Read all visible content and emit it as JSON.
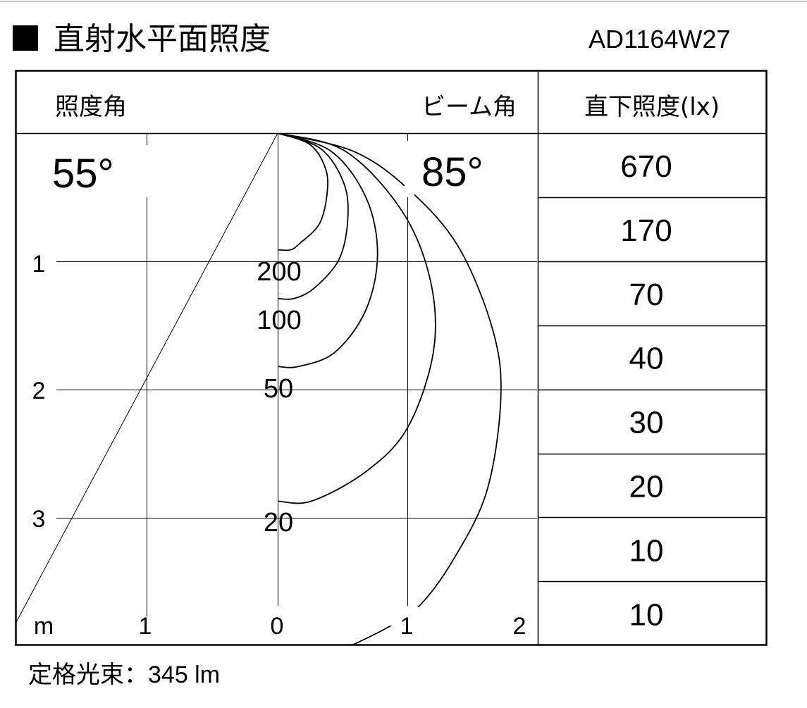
{
  "header": {
    "title": "直射水平面照度",
    "model": "AD1164W27"
  },
  "table": {
    "col_illum_angle": "照度角",
    "col_beam_angle": "ビーム角",
    "col_direct_illum": "直下照度(lx)",
    "illum_angle_value": "55°",
    "beam_angle_value": "85°",
    "direct_illuminance": [
      "670",
      "170",
      "70",
      "40",
      "30",
      "20",
      "10",
      "10"
    ]
  },
  "diagram": {
    "unit": "m",
    "x_ticks": [
      "1",
      "0",
      "1",
      "2"
    ],
    "y_ticks": [
      "1",
      "2",
      "3"
    ],
    "contours": [
      {
        "label": "200",
        "points": [
          [
            0,
            0
          ],
          [
            0.25,
            0.09
          ],
          [
            0.37,
            0.28
          ],
          [
            0.38,
            0.48
          ],
          [
            0.32,
            0.71
          ],
          [
            0.17,
            0.86
          ],
          [
            0.1,
            0.91
          ],
          [
            0,
            0.91
          ]
        ]
      },
      {
        "label": "100",
        "points": [
          [
            0,
            0
          ],
          [
            0.33,
            0.12
          ],
          [
            0.51,
            0.39
          ],
          [
            0.54,
            0.68
          ],
          [
            0.47,
            0.99
          ],
          [
            0.28,
            1.21
          ],
          [
            0.125,
            1.29
          ],
          [
            0,
            1.29
          ]
        ]
      },
      {
        "label": "50",
        "points": [
          [
            0,
            0
          ],
          [
            0.41,
            0.14
          ],
          [
            0.68,
            0.5
          ],
          [
            0.77,
            0.94
          ],
          [
            0.68,
            1.38
          ],
          [
            0.44,
            1.71
          ],
          [
            0.16,
            1.82
          ],
          [
            0,
            1.82
          ]
        ]
      },
      {
        "label": "20",
        "points": [
          [
            0,
            0
          ],
          [
            0.52,
            0.14
          ],
          [
            0.96,
            0.61
          ],
          [
            1.18,
            1.16
          ],
          [
            1.2,
            1.71
          ],
          [
            1.0,
            2.3
          ],
          [
            0.68,
            2.64
          ],
          [
            0.26,
            2.87
          ],
          [
            0,
            2.87
          ]
        ]
      },
      {
        "label": "",
        "points": [
          [
            0,
            0
          ],
          [
            0.58,
            0.14
          ],
          [
            1.0,
            0.43
          ],
          [
            1.39,
            0.88
          ],
          [
            1.66,
            1.54
          ],
          [
            1.72,
            2.08
          ],
          [
            1.61,
            2.8
          ],
          [
            1.34,
            3.35
          ],
          [
            1.08,
            3.7
          ],
          [
            0.84,
            3.86
          ],
          [
            0.54,
            4.01
          ]
        ]
      }
    ]
  },
  "footer": {
    "label": "定格光束",
    "value": "：345 lm"
  }
}
